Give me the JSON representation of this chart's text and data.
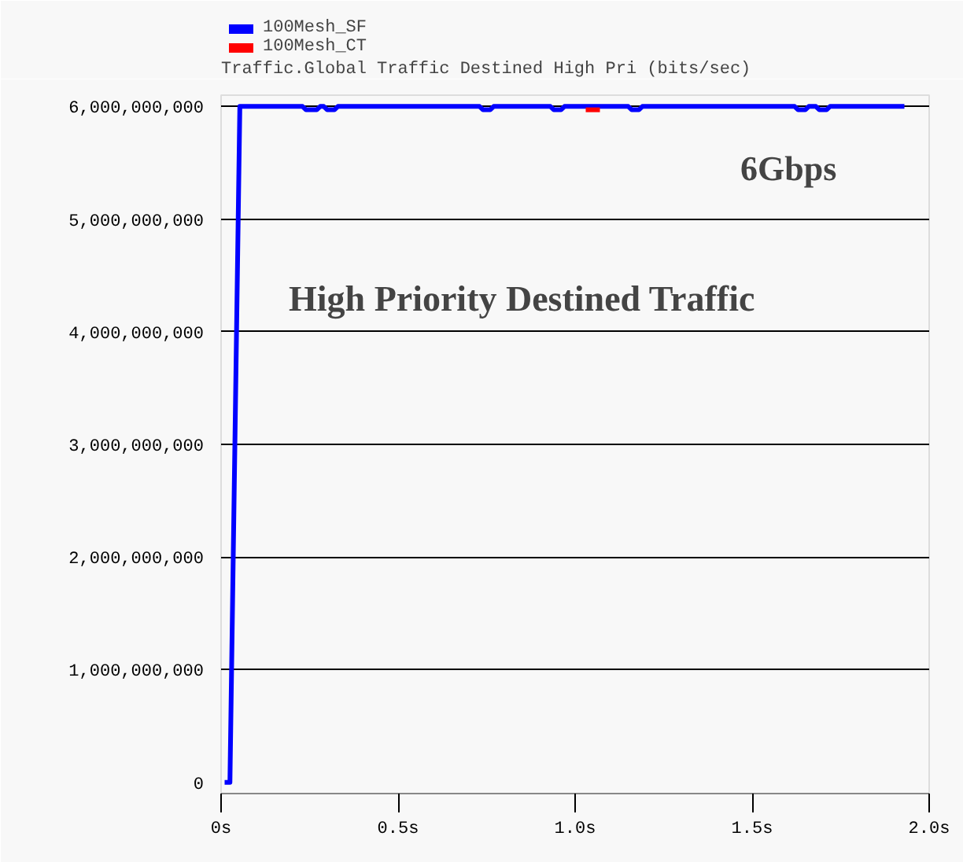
{
  "chart_data": {
    "type": "line",
    "title": "Traffic.Global Traffic Destined High Pri (bits/sec)",
    "annotations": [
      "6Gbps",
      "High Priority Destined Traffic"
    ],
    "xlim": [
      0,
      2.0
    ],
    "ylim": [
      -100000000,
      6100000000
    ],
    "xticks": [
      {
        "value": 0,
        "label": "0s"
      },
      {
        "value": 0.5,
        "label": "0.5s"
      },
      {
        "value": 1.0,
        "label": "1.0s"
      },
      {
        "value": 1.5,
        "label": "1.5s"
      },
      {
        "value": 2.0,
        "label": "2.0s"
      }
    ],
    "yticks": [
      {
        "value": 0,
        "label": "0"
      },
      {
        "value": 1000000000,
        "label": "1,000,000,000"
      },
      {
        "value": 2000000000,
        "label": "2,000,000,000"
      },
      {
        "value": 3000000000,
        "label": "3,000,000,000"
      },
      {
        "value": 4000000000,
        "label": "4,000,000,000"
      },
      {
        "value": 5000000000,
        "label": "5,000,000,000"
      },
      {
        "value": 6000000000,
        "label": "6,000,000,000"
      }
    ],
    "grid": "y",
    "legend": "top left",
    "marker": "none",
    "line_style": "solid",
    "series": [
      {
        "name": "100Mesh_SF",
        "color": "#0000ff",
        "x": [
          0.01,
          0.025,
          0.053,
          0.23,
          0.24,
          0.27,
          0.28,
          0.29,
          0.3,
          0.32,
          0.33,
          0.73,
          0.74,
          0.76,
          0.77,
          0.93,
          0.94,
          0.96,
          0.97,
          1.15,
          1.16,
          1.18,
          1.19,
          1.62,
          1.63,
          1.65,
          1.66,
          1.68,
          1.69,
          1.71,
          1.72,
          1.93
        ],
        "values": [
          0,
          0,
          6000000000,
          6000000000,
          5970000000,
          5970000000,
          6000000000,
          6000000000,
          5970000000,
          5970000000,
          6000000000,
          6000000000,
          5970000000,
          5970000000,
          6000000000,
          6000000000,
          5970000000,
          5970000000,
          6000000000,
          6000000000,
          5970000000,
          5970000000,
          6000000000,
          6000000000,
          5970000000,
          5970000000,
          6000000000,
          6000000000,
          5970000000,
          5970000000,
          6000000000,
          6000000000
        ]
      },
      {
        "name": "100Mesh_CT",
        "color": "#ff0000",
        "x": [
          1.03,
          1.07
        ],
        "values": [
          5970000000,
          5970000000
        ]
      }
    ]
  }
}
